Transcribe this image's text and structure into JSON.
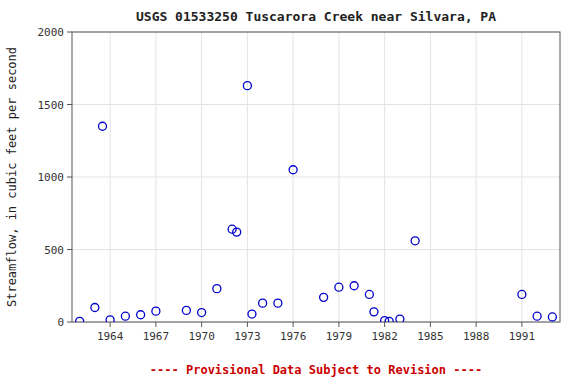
{
  "chart_data": {
    "type": "scatter",
    "title": "USGS 01533250 Tuscarora Creek near Silvara, PA",
    "y_label": "Streamflow, in cubic feet per second",
    "annotations": [
      {
        "text": "---- Provisional Data Subject to Revision ----",
        "color": "#cc0000"
      }
    ],
    "x": [
      1962,
      1963,
      1963.5,
      1964,
      1965,
      1966,
      1967,
      1969,
      1970,
      1971,
      1972,
      1972.3,
      1973,
      1973.3,
      1974,
      1975,
      1976,
      1978,
      1979,
      1980,
      1981,
      1981.3,
      1982,
      1982.3,
      1983,
      1984,
      1991,
      1992,
      1993
    ],
    "values": [
      5,
      100,
      1350,
      15,
      40,
      50,
      75,
      80,
      65,
      230,
      640,
      620,
      1630,
      55,
      130,
      130,
      1050,
      170,
      240,
      250,
      190,
      70,
      10,
      5,
      20,
      560,
      190,
      40,
      35
    ],
    "color": "#0000CC",
    "marker": "open-circle",
    "xlim": [
      1961.5,
      1993.5
    ],
    "ylim": [
      0,
      2000
    ],
    "xticks": [
      1964,
      1967,
      1970,
      1973,
      1976,
      1979,
      1982,
      1985,
      1988,
      1991
    ],
    "yticks": [
      0,
      500,
      1000,
      1500,
      2000
    ],
    "grid": true
  }
}
